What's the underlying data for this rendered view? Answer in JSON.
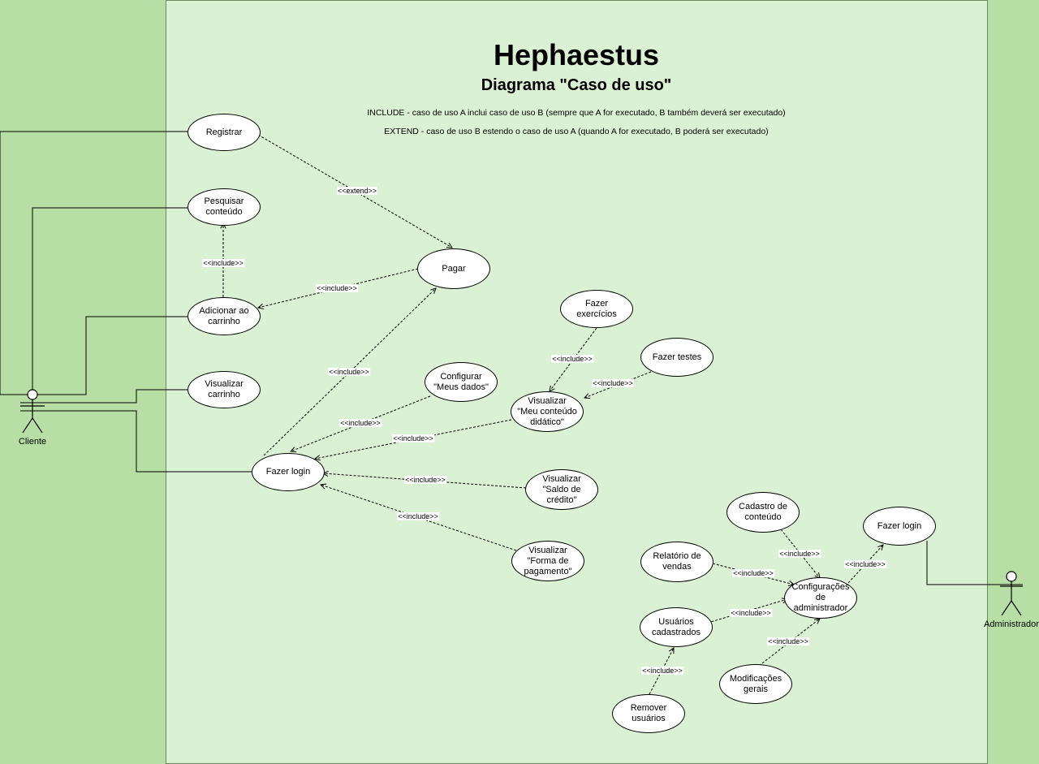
{
  "title": "Hephaestus",
  "subtitle": "Diagrama \"Caso de uso\"",
  "notes": {
    "include": "INCLUDE - caso de uso A inclui caso de uso B (sempre que A for executado, B também deverá ser executado)",
    "extend": "EXTEND - caso de uso B estendo o caso de uso A (quando A for executado, B poderá ser executado)"
  },
  "actors": {
    "cliente": "Cliente",
    "administrador": "Administrador"
  },
  "use_cases": {
    "registrar": "Registrar",
    "pesquisar": "Pesquisar\nconteúdo",
    "adicionar": "Adicionar ao\ncarrinho",
    "visualizar_carrinho": "Visualizar\ncarrinho",
    "pagar": "Pagar",
    "login_cliente": "Fazer login",
    "configurar_dados": "Configurar\n\"Meus dados\"",
    "meu_conteudo": "Visualizar\n\"Meu conteúdo\ndidático\"",
    "exercicios": "Fazer exercícios",
    "testes": "Fazer testes",
    "saldo": "Visualizar\n\"Saldo de\ncrédito\"",
    "forma_pagamento": "Visualizar\n\"Forma de\npagamento\"",
    "cadastro_conteudo": "Cadastro de\nconteúdo",
    "relatorio": "Relatório de\nvendas",
    "config_admin": "Configurações de\nadministrador",
    "usuarios": "Usuários\ncadastrados",
    "modificacoes": "Modificações\ngerais",
    "remover": "Remover usuários",
    "login_admin": "Fazer login"
  },
  "relations": {
    "include": "<<include>>",
    "extend": "<<extend>>"
  }
}
